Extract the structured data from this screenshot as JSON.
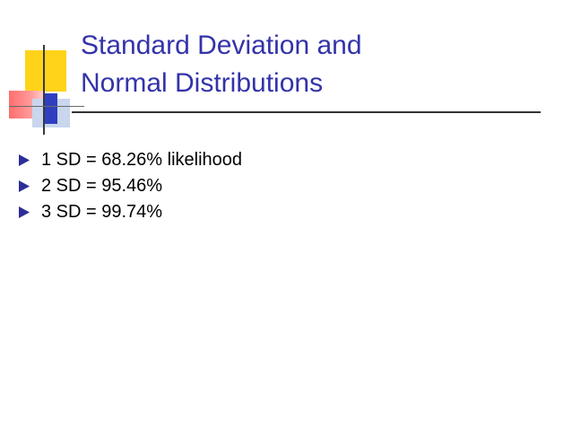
{
  "slide": {
    "title_lines": [
      "Standard Deviation and",
      "Normal Distributions"
    ],
    "bullets": [
      {
        "text": "1 SD = 68.26% likelihood"
      },
      {
        "text": "2 SD = 95.46%"
      },
      {
        "text": "3 SD = 99.74%"
      }
    ]
  },
  "colors": {
    "title": "#3333aa",
    "bullet_marker": "#2d2d9a",
    "body_text": "#000000"
  },
  "icons": {
    "bullet": "arrowhead-bullet-icon"
  }
}
